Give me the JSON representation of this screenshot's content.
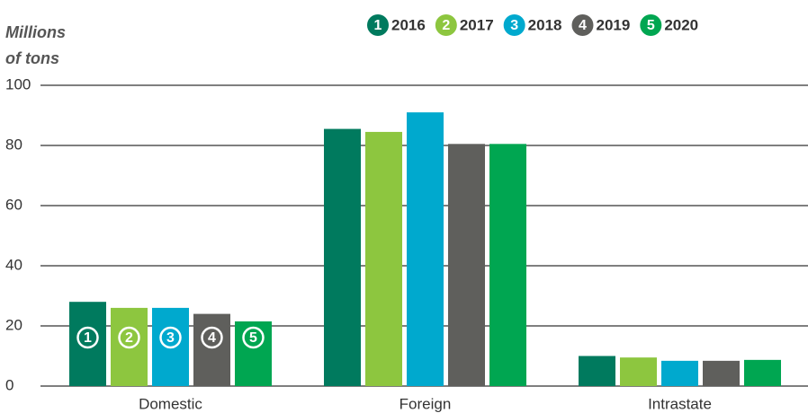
{
  "chart_data": {
    "type": "bar",
    "y_label": [
      "Millions",
      "of tons"
    ],
    "categories": [
      "Domestic",
      "Foreign",
      "Intrastate"
    ],
    "series": [
      {
        "name": "2016",
        "badge": "1",
        "color": "#007a5e",
        "values": [
          28,
          85.5,
          10
        ]
      },
      {
        "name": "2017",
        "badge": "2",
        "color": "#8dc63f",
        "values": [
          26,
          84.5,
          9.5
        ]
      },
      {
        "name": "2018",
        "badge": "3",
        "color": "#00a9ce",
        "values": [
          26,
          91,
          8.4
        ]
      },
      {
        "name": "2019",
        "badge": "4",
        "color": "#5f5f5c",
        "values": [
          24,
          80.5,
          8.4
        ]
      },
      {
        "name": "2020",
        "badge": "5",
        "color": "#00a651",
        "values": [
          21.5,
          80.5,
          8.7
        ]
      }
    ],
    "ylim": [
      0,
      100
    ],
    "yticks": [
      0,
      20,
      40,
      60,
      80,
      100
    ],
    "grid": true,
    "legend": "top-right"
  }
}
